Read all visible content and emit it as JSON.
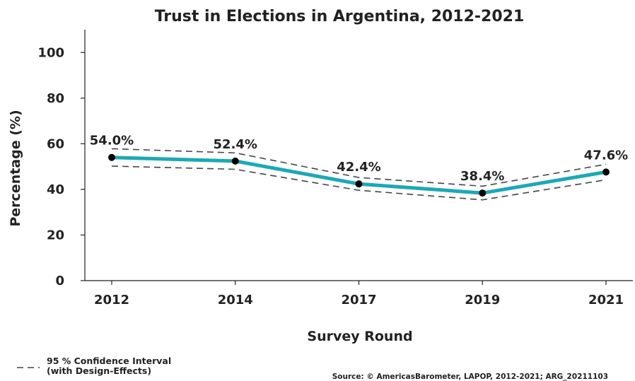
{
  "chart_data": {
    "type": "line",
    "title": "Trust in Elections in Argentina, 2012-2021",
    "xlabel": "Survey Round",
    "ylabel": "Percentage (%)",
    "ylim": [
      0,
      110
    ],
    "yticks": [
      0,
      20,
      40,
      60,
      80,
      100
    ],
    "categories": [
      "2012",
      "2014",
      "2017",
      "2019",
      "2021"
    ],
    "series": [
      {
        "values": [
          54.0,
          52.4,
          42.4,
          38.4,
          47.6
        ],
        "labels": [
          "54.0%",
          "52.4%",
          "42.4%",
          "38.4%",
          "47.6%"
        ],
        "ci_upper": [
          57.8,
          56.0,
          45.2,
          41.4,
          51.0
        ],
        "ci_lower": [
          50.2,
          48.8,
          39.6,
          35.4,
          44.2
        ],
        "color": "#1ba9b5"
      }
    ],
    "ci_color": "#444444",
    "grid": false,
    "legend": {
      "position": "bottom-left",
      "line1": "95 % Confidence Interval",
      "line2": "(with Design-Effects)"
    },
    "source": "Source: © AmericasBarometer, LAPOP, 2012-2021; ARG_20211103"
  }
}
